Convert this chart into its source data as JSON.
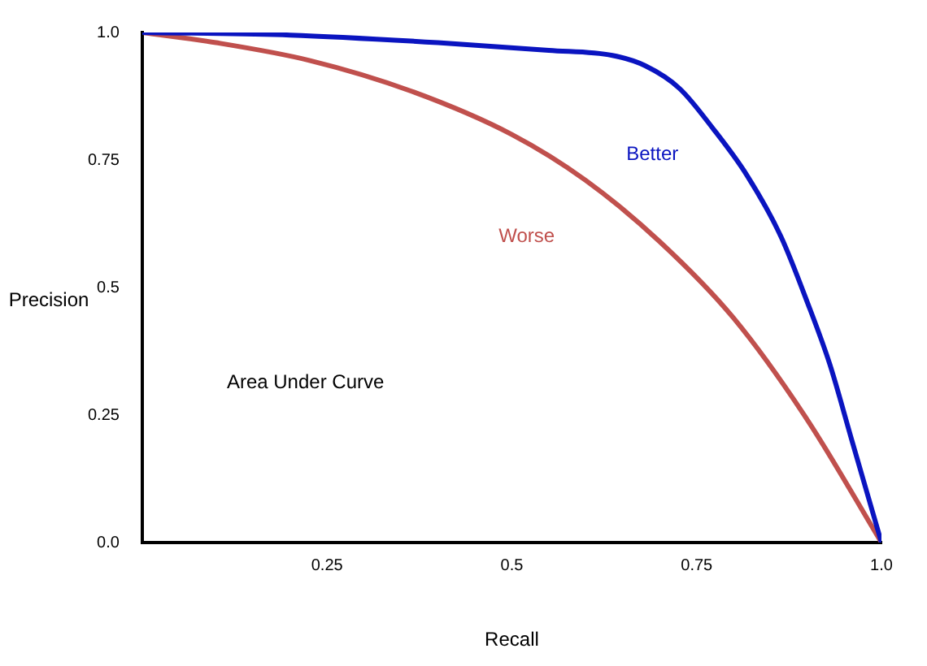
{
  "chart_data": {
    "type": "line",
    "xlabel": "Recall",
    "ylabel": "Precision",
    "annotations": [
      "Area Under Curve"
    ],
    "xlim": [
      0,
      1
    ],
    "ylim": [
      0,
      1
    ],
    "xticks": [
      0.25,
      0.5,
      0.75,
      {
        "value": 1,
        "label": "1.0"
      }
    ],
    "yticks": [
      {
        "value": 0,
        "label": "0.0"
      },
      0.25,
      0.5,
      0.75,
      {
        "value": 1,
        "label": "1.0"
      }
    ],
    "grid": false,
    "legend": false,
    "marker": "none",
    "line_style": "solid",
    "series": [
      {
        "name": "Better",
        "color": "#0a14c0",
        "x": [
          0,
          0.2,
          0.4,
          0.55,
          0.636,
          0.68,
          0.727,
          0.773,
          0.818,
          0.864,
          0.9,
          0.93,
          0.96,
          1
        ],
        "values": [
          1,
          0.995,
          0.98,
          0.965,
          0.955,
          0.935,
          0.89,
          0.81,
          0.72,
          0.6,
          0.47,
          0.35,
          0.2,
          0
        ]
      },
      {
        "name": "Worse",
        "color": "#c0504d",
        "x": [
          0,
          0.1,
          0.227,
          0.364,
          0.5,
          0.6,
          0.7,
          0.8,
          0.9,
          1
        ],
        "values": [
          1,
          0.98,
          0.945,
          0.885,
          0.8,
          0.71,
          0.59,
          0.44,
          0.24,
          0
        ]
      }
    ]
  }
}
